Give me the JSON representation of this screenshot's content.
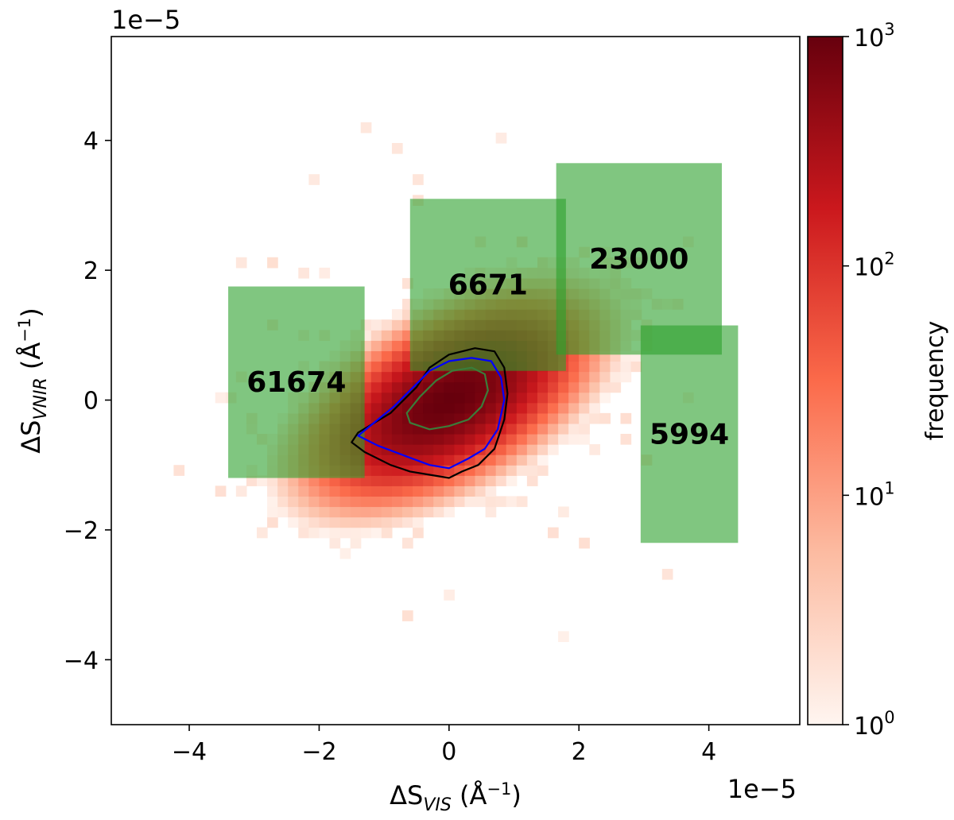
{
  "chart_data": {
    "type": "heatmap",
    "title": "",
    "xlabel": {
      "base": "ΔS",
      "sub": "VIS",
      "unit": " (Å",
      "sup": "−1",
      "close": ")"
    },
    "ylabel": {
      "base": "ΔS",
      "sub": "VNIR",
      "unit": " (Å",
      "sup": "−1",
      "close": ")"
    },
    "x_offset_label": "1e−5",
    "y_offset_label": "1e−5",
    "xlim": [
      -5.2,
      5.4
    ],
    "ylim": [
      -5.0,
      5.6
    ],
    "x_ticks": [
      -4,
      -2,
      0,
      2,
      4
    ],
    "y_ticks": [
      -4,
      -2,
      0,
      2,
      4
    ],
    "x_tick_labels": [
      "−4",
      "−2",
      "0",
      "2",
      "4"
    ],
    "y_tick_labels": [
      "−4",
      "−2",
      "0",
      "2",
      "4"
    ],
    "grid": false,
    "colormap": "Reds",
    "colorbar": {
      "label": "frequency",
      "scale": "log",
      "range": [
        1,
        1000
      ],
      "ticks": [
        {
          "base": "10",
          "exp": "0",
          "value": 1
        },
        {
          "base": "10",
          "exp": "1",
          "value": 10
        },
        {
          "base": "10",
          "exp": "2",
          "value": 100
        },
        {
          "base": "10",
          "exp": "3",
          "value": 1000
        }
      ]
    },
    "distribution": {
      "center": [
        0.0,
        0.0
      ],
      "peak_frequency": 1000
    },
    "contours": [
      {
        "color": "#000000",
        "points": [
          [
            -1.4,
            -0.5
          ],
          [
            -0.9,
            -0.2
          ],
          [
            -0.5,
            0.2
          ],
          [
            -0.3,
            0.5
          ],
          [
            0.0,
            0.7
          ],
          [
            0.4,
            0.8
          ],
          [
            0.7,
            0.75
          ],
          [
            0.85,
            0.5
          ],
          [
            0.9,
            0.1
          ],
          [
            0.85,
            -0.3
          ],
          [
            0.7,
            -0.75
          ],
          [
            0.45,
            -1.0
          ],
          [
            0.2,
            -1.1
          ],
          [
            0.0,
            -1.2
          ],
          [
            -0.3,
            -1.15
          ],
          [
            -0.6,
            -1.1
          ],
          [
            -0.9,
            -1.0
          ],
          [
            -1.3,
            -0.8
          ],
          [
            -1.5,
            -0.65
          ]
        ]
      },
      {
        "color": "#0000ff",
        "points": [
          [
            -1.4,
            -0.55
          ],
          [
            -0.85,
            -0.1
          ],
          [
            -0.5,
            0.25
          ],
          [
            -0.3,
            0.45
          ],
          [
            0.0,
            0.6
          ],
          [
            0.35,
            0.65
          ],
          [
            0.65,
            0.6
          ],
          [
            0.8,
            0.35
          ],
          [
            0.85,
            0.0
          ],
          [
            0.75,
            -0.45
          ],
          [
            0.55,
            -0.75
          ],
          [
            0.3,
            -0.9
          ],
          [
            0.0,
            -1.05
          ],
          [
            -0.3,
            -1.0
          ],
          [
            -0.7,
            -0.85
          ],
          [
            -1.1,
            -0.7
          ]
        ]
      },
      {
        "color": "#3a7d3a",
        "points": [
          [
            -0.65,
            -0.2
          ],
          [
            -0.45,
            0.05
          ],
          [
            -0.2,
            0.3
          ],
          [
            0.05,
            0.45
          ],
          [
            0.35,
            0.5
          ],
          [
            0.55,
            0.4
          ],
          [
            0.6,
            0.15
          ],
          [
            0.5,
            -0.1
          ],
          [
            0.3,
            -0.3
          ],
          [
            0.0,
            -0.4
          ],
          [
            -0.3,
            -0.45
          ],
          [
            -0.6,
            -0.35
          ]
        ]
      }
    ],
    "regions": [
      {
        "label": "61674",
        "x": [
          -3.4,
          -1.3
        ],
        "y": [
          -1.2,
          1.75
        ]
      },
      {
        "label": "6671",
        "x": [
          -0.6,
          1.8
        ],
        "y": [
          0.45,
          3.1
        ]
      },
      {
        "label": "23000",
        "x": [
          1.65,
          4.2
        ],
        "y": [
          0.7,
          3.65
        ]
      },
      {
        "label": "5994",
        "x": [
          2.95,
          4.45
        ],
        "y": [
          -2.2,
          1.15
        ]
      }
    ],
    "region_color": "#2ca02c"
  }
}
